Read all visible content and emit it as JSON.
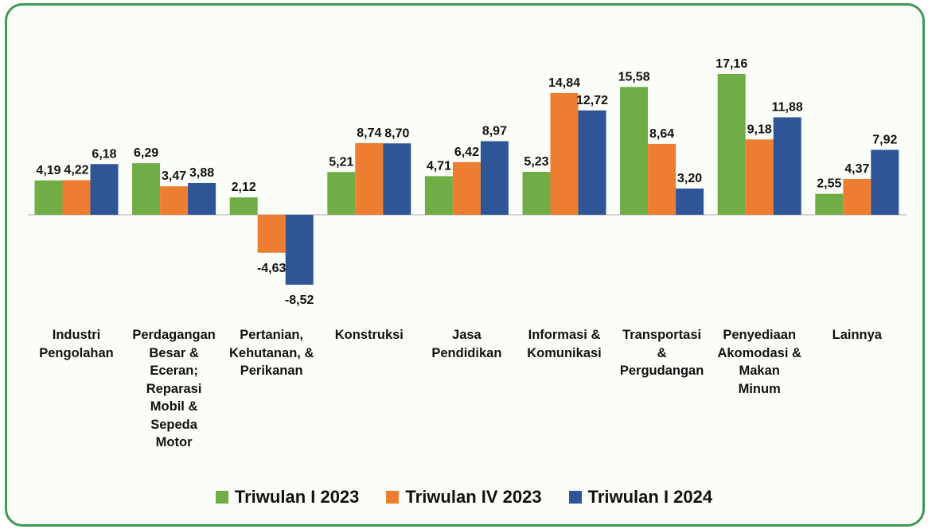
{
  "chart_data": {
    "type": "bar",
    "categories": [
      "Industri\nPengolahan",
      "Perdagangan\nBesar &\nEceran;\nReparasi\nMobil &\nSepeda\nMotor",
      "Pertanian,\nKehutanan, &\nPerikanan",
      "Konstruksi",
      "Jasa\nPendidikan",
      "Informasi &\nKomunikasi",
      "Transportasi\n&\nPergudangan",
      "Penyediaan\nAkomodasi &\nMakan\nMinum",
      "Lainnya"
    ],
    "series": [
      {
        "name": "Triwulan I 2023",
        "color": "#70ad47",
        "values": [
          4.19,
          6.29,
          2.12,
          5.21,
          4.71,
          5.23,
          15.58,
          17.16,
          2.55
        ],
        "value_labels": [
          "4,19",
          "6,29",
          "2,12",
          "5,21",
          "4,71",
          "5,23",
          "15,58",
          "17,16",
          "2,55"
        ]
      },
      {
        "name": "Triwulan IV 2023",
        "color": "#ed7d31",
        "values": [
          4.22,
          3.47,
          -4.63,
          8.74,
          6.42,
          14.84,
          8.64,
          9.18,
          4.37
        ],
        "value_labels": [
          "4,22",
          "3,47",
          "-4,63",
          "8,74",
          "6,42",
          "14,84",
          "8,64",
          "9,18",
          "4,37"
        ]
      },
      {
        "name": "Triwulan I 2024",
        "color": "#2f5597",
        "values": [
          6.18,
          3.88,
          -8.52,
          8.7,
          8.97,
          12.72,
          3.2,
          11.88,
          7.92
        ],
        "value_labels": [
          "6,18",
          "3,88",
          "-8,52",
          "8,70",
          "8,97",
          "12,72",
          "3,20",
          "11,88",
          "7,92"
        ]
      }
    ]
  }
}
